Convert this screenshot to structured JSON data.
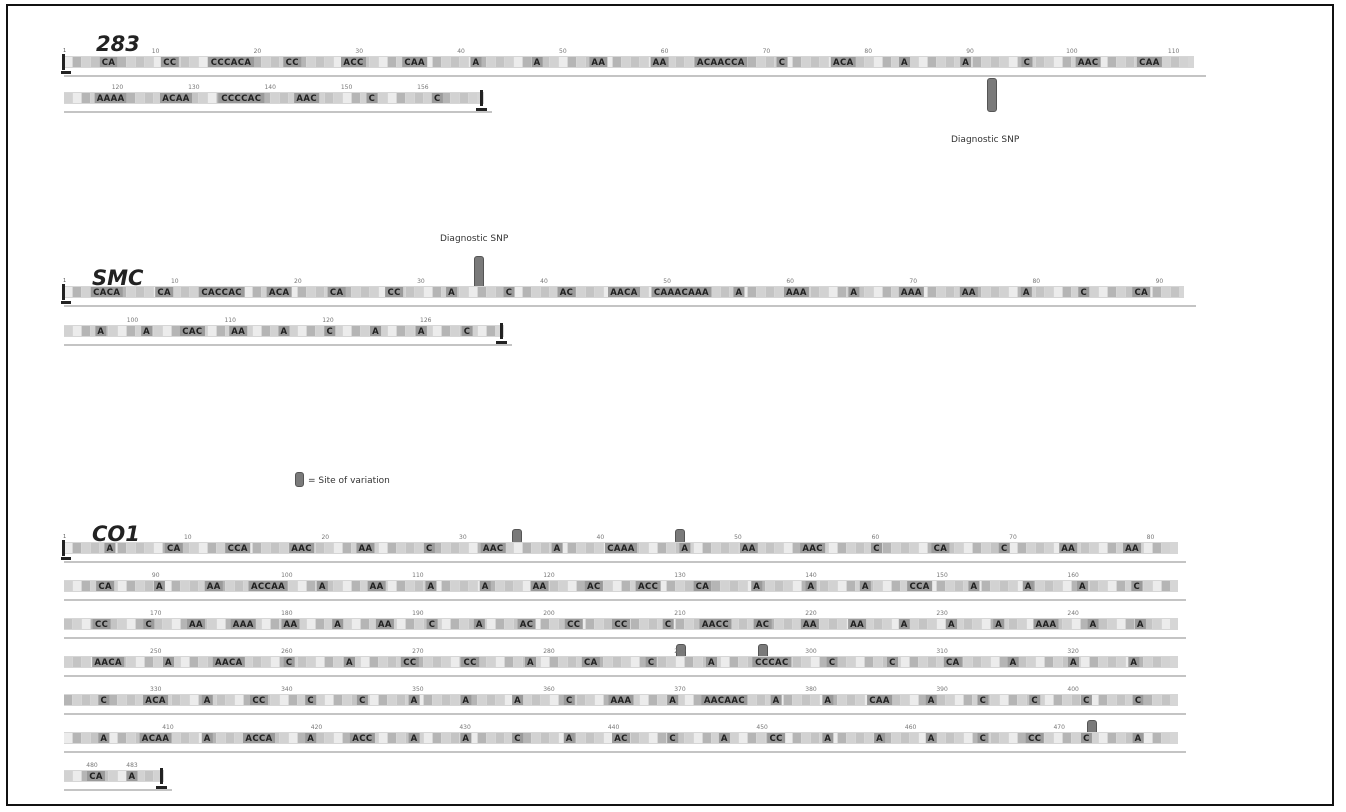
{
  "sections": [
    {
      "title": "283",
      "lines": [
        {
          "start": "1",
          "ticks": [
            "10",
            "20",
            "30",
            "40",
            "50",
            "60",
            "70",
            "80",
            "90",
            "100",
            "110"
          ],
          "bases": [
            "CA",
            "CC",
            "CCCACA",
            "CC",
            "ACC",
            "CAA",
            "A",
            "A",
            "AA",
            "AA",
            "ACAACCA",
            "C",
            "ACA",
            "A",
            "A",
            "C",
            "AAC",
            "CAA"
          ]
        },
        {
          "ticks": [
            "120",
            "130",
            "140",
            "150",
            "156"
          ],
          "bases": [
            "AAAA",
            "ACAA",
            "CCCCAC",
            "AAC",
            "C",
            "C"
          ]
        }
      ],
      "annotation": "Diagnostic SNP"
    },
    {
      "title": "SMC",
      "lines": [
        {
          "start": "1",
          "ticks": [
            "10",
            "20",
            "30",
            "40",
            "50",
            "60",
            "70",
            "80",
            "90"
          ],
          "bases": [
            "CACA",
            "CA",
            "CACCAC",
            "ACA",
            "CA",
            "CC",
            "A",
            "C",
            "AC",
            "AACA",
            "CAAACAAA",
            "A",
            "AAA",
            "A",
            "AAA",
            "AA",
            "A",
            "C",
            "CA"
          ]
        },
        {
          "ticks": [
            "100",
            "110",
            "120",
            "126"
          ],
          "bases": [
            "A",
            "A",
            "CAC",
            "AA",
            "A",
            "C",
            "A",
            "A",
            "C"
          ]
        }
      ],
      "annotation": "Diagnostic SNP"
    },
    {
      "title": "CO1",
      "lines": [
        {
          "start": "1",
          "ticks": [
            "10",
            "20",
            "30",
            "40",
            "50",
            "60",
            "70",
            "80"
          ],
          "bases": [
            "A",
            "CA",
            "CCA",
            "AAC",
            "AA",
            "C",
            "AAC",
            "A",
            "CAAA",
            "A",
            "AA",
            "AAC",
            "C",
            "CA",
            "C",
            "AA",
            "AA"
          ]
        },
        {
          "ticks": [
            "90",
            "100",
            "110",
            "120",
            "130",
            "140",
            "150",
            "160"
          ],
          "bases": [
            "CA",
            "A",
            "AA",
            "ACCAA",
            "A",
            "AA",
            "A",
            "A",
            "AA",
            "AC",
            "ACC",
            "CA",
            "A",
            "A",
            "A",
            "CCA",
            "A",
            "A",
            "A",
            "C"
          ]
        },
        {
          "ticks": [
            "170",
            "180",
            "190",
            "200",
            "210",
            "220",
            "230",
            "240"
          ],
          "bases": [
            "CC",
            "C",
            "AA",
            "AAA",
            "AA",
            "A",
            "AA",
            "C",
            "A",
            "AC",
            "CC",
            "CC",
            "C",
            "AACC",
            "AC",
            "AA",
            "AA",
            "A",
            "A",
            "A",
            "AAA",
            "A",
            "A"
          ]
        },
        {
          "ticks": [
            "250",
            "260",
            "270",
            "280",
            "290",
            "300",
            "310",
            "320"
          ],
          "bases": [
            "AACA",
            "A",
            "AACA",
            "C",
            "A",
            "CC",
            "CC",
            "A",
            "CA",
            "C",
            "A",
            "CCCAC",
            "C",
            "C",
            "CA",
            "A",
            "A",
            "A"
          ]
        },
        {
          "ticks": [
            "330",
            "340",
            "350",
            "360",
            "370",
            "380",
            "390",
            "400"
          ],
          "bases": [
            "C",
            "ACA",
            "A",
            "CC",
            "C",
            "C",
            "A",
            "A",
            "A",
            "C",
            "AAA",
            "A",
            "AACAAC",
            "A",
            "A",
            "CAA",
            "A",
            "C",
            "C",
            "C",
            "C"
          ]
        },
        {
          "ticks": [
            "410",
            "420",
            "430",
            "440",
            "450",
            "460",
            "470"
          ],
          "bases": [
            "A",
            "ACAA",
            "A",
            "ACCA",
            "A",
            "ACC",
            "A",
            "A",
            "C",
            "A",
            "AC",
            "C",
            "A",
            "CC",
            "A",
            "A",
            "A",
            "C",
            "CC",
            "C",
            "A"
          ]
        },
        {
          "ticks": [
            "480",
            "483"
          ],
          "bases": [
            "CA",
            "A"
          ]
        }
      ]
    }
  ],
  "legend": "= Site of variation"
}
